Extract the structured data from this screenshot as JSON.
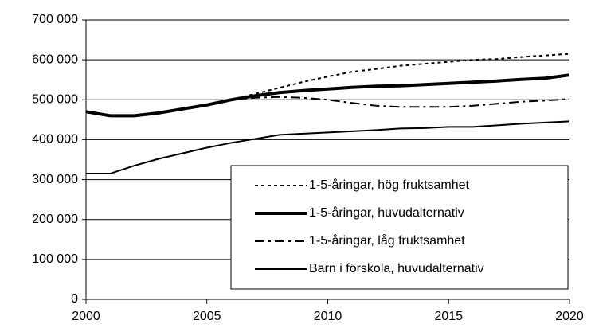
{
  "chart_data": {
    "type": "line",
    "x": [
      2000,
      2001,
      2002,
      2003,
      2004,
      2005,
      2006,
      2007,
      2008,
      2009,
      2010,
      2011,
      2012,
      2013,
      2014,
      2015,
      2016,
      2017,
      2018,
      2019,
      2020
    ],
    "xlim": [
      2000,
      2020
    ],
    "xticks": [
      2000,
      2005,
      2010,
      2015,
      2020
    ],
    "ylim": [
      0,
      700000
    ],
    "yticks": [
      0,
      {
        "value": 100000,
        "label": "100 000"
      },
      {
        "value": 200000,
        "label": "200 000"
      },
      {
        "value": 300000,
        "label": "300 000"
      },
      {
        "value": 400000,
        "label": "400 000"
      },
      {
        "value": 500000,
        "label": "500 000"
      },
      {
        "value": 600000,
        "label": "600 000"
      },
      {
        "value": 700000,
        "label": "700 000"
      }
    ],
    "grid": true,
    "legend": "lower right",
    "series": [
      {
        "name": "1-5-åringar, hög fruktsamhet",
        "color": "#000000",
        "dash": "dotted",
        "width": 2,
        "values": [
          null,
          null,
          null,
          null,
          null,
          null,
          500000,
          515000,
          530000,
          545000,
          558000,
          570000,
          577000,
          585000,
          590000,
          595000,
          600000,
          602000,
          607000,
          611000,
          615000
        ]
      },
      {
        "name": "1-5-åringar, huvudalternativ",
        "color": "#000000",
        "dash": "solid",
        "width": 4,
        "values": [
          470000,
          460000,
          460000,
          467000,
          477000,
          487000,
          500000,
          510000,
          518000,
          523000,
          527000,
          531000,
          534000,
          535000,
          538000,
          541000,
          544000,
          547000,
          551000,
          554000,
          562000
        ]
      },
      {
        "name": "1-5-åringar, låg fruktsamhet",
        "color": "#000000",
        "dash": "dashdot",
        "width": 2,
        "values": [
          null,
          null,
          null,
          null,
          null,
          null,
          500000,
          505000,
          507000,
          505000,
          500000,
          492000,
          485000,
          482000,
          482000,
          482000,
          485000,
          490000,
          495000,
          498000,
          502000
        ]
      },
      {
        "name": "Barn i förskola, huvudalternativ",
        "color": "#000000",
        "dash": "solid",
        "width": 2,
        "values": [
          315000,
          315000,
          335000,
          352000,
          366000,
          380000,
          392000,
          402000,
          412000,
          415000,
          418000,
          421000,
          424000,
          428000,
          429000,
          432000,
          432000,
          436000,
          440000,
          443000,
          446000
        ]
      }
    ]
  }
}
